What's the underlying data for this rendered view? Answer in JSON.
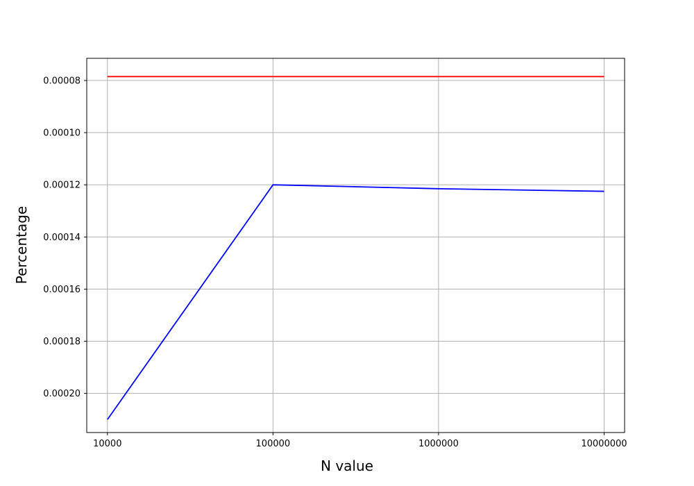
{
  "chart_data": {
    "type": "line",
    "title": "",
    "xlabel": "N value",
    "ylabel": "Percentage",
    "x_scale": "log",
    "y_inverted": true,
    "xlim": [
      7500,
      13300000
    ],
    "ylim": [
      0.000215,
      7.15e-05
    ],
    "x": [
      10000,
      100000,
      1000000,
      10000000
    ],
    "x_tick_labels": [
      "10000",
      "100000",
      "1000000",
      "10000000"
    ],
    "y_ticks": [
      8e-05,
      0.0001,
      0.00012,
      0.00014,
      0.00016,
      0.00018,
      0.0002
    ],
    "y_tick_labels": [
      "0.00008",
      "0.00010",
      "0.00012",
      "0.00014",
      "0.00016",
      "0.00018",
      "0.00020"
    ],
    "grid": true,
    "series": [
      {
        "color": "#ff0000",
        "values": [
          7.85e-05,
          7.85e-05,
          7.85e-05,
          7.85e-05
        ]
      },
      {
        "color": "#0000ff",
        "values": [
          0.00021,
          0.00012,
          0.0001215,
          0.0001225
        ]
      }
    ]
  }
}
